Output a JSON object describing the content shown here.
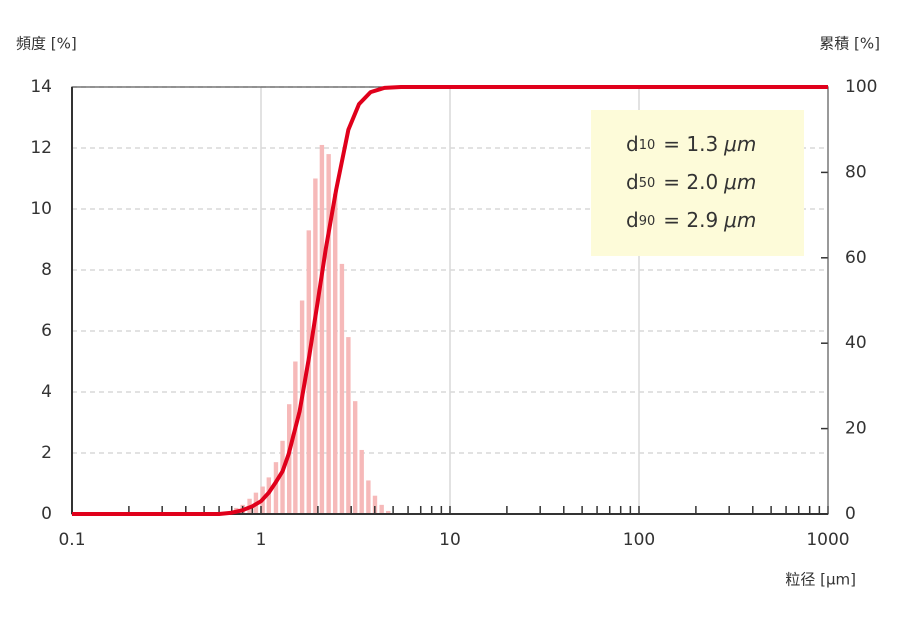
{
  "chart_data": {
    "type": "bar",
    "y_axis_label": "頻度 [%]",
    "y2_axis_label": "累積 [%]",
    "x_axis_label": "粒径 [μm]",
    "xscale": "log",
    "xlim": [
      0.1,
      1000
    ],
    "xticks": [
      0.1,
      1,
      10,
      100,
      1000
    ],
    "xminorticks": [
      0.2,
      0.3,
      0.4,
      0.5,
      0.6,
      0.7,
      0.8,
      0.9,
      2,
      3,
      4,
      5,
      6,
      7,
      8,
      9,
      20,
      30,
      40,
      50,
      60,
      70,
      80,
      90,
      200,
      300,
      400,
      500,
      600,
      700,
      800,
      900
    ],
    "ylim": [
      0,
      14
    ],
    "yticks": [
      0,
      2,
      4,
      6,
      8,
      10,
      12,
      14
    ],
    "y2lim": [
      0,
      100
    ],
    "y2ticks": [
      0,
      20,
      40,
      60,
      80,
      100
    ],
    "grid": true,
    "series": [
      {
        "type": "bar",
        "color": "#f6b9b9",
        "x": [
          0.74,
          0.8,
          0.87,
          0.94,
          1.02,
          1.1,
          1.2,
          1.3,
          1.41,
          1.52,
          1.65,
          1.79,
          1.94,
          2.1,
          2.28,
          2.47,
          2.68,
          2.9,
          3.15,
          3.41,
          3.7,
          4.01,
          4.35,
          4.71
        ],
        "values": [
          0.2,
          0.3,
          0.5,
          0.7,
          0.9,
          1.2,
          1.7,
          2.4,
          3.6,
          5.0,
          7.0,
          9.3,
          11.0,
          12.1,
          11.8,
          10.5,
          8.2,
          5.8,
          3.7,
          2.1,
          1.1,
          0.6,
          0.3,
          0.1
        ]
      },
      {
        "type": "line",
        "axis": "y2",
        "color": "#e0001b",
        "x": [
          0.1,
          0.6,
          0.7,
          0.8,
          0.9,
          1.0,
          1.1,
          1.2,
          1.3,
          1.4,
          1.6,
          1.8,
          2.0,
          2.2,
          2.5,
          2.9,
          3.3,
          3.8,
          4.5,
          5.5,
          1000
        ],
        "values": [
          0,
          0,
          0.3,
          0.9,
          1.8,
          3,
          5,
          7.5,
          10,
          14,
          24,
          37,
          50,
          62,
          76,
          90,
          96,
          98.8,
          99.8,
          100,
          100
        ]
      }
    ],
    "annotations": [
      {
        "symbol": "d",
        "subscript": "10",
        "text": "= 1.3",
        "unit": "μm"
      },
      {
        "symbol": "d",
        "subscript": "50",
        "text": "= 2.0",
        "unit": "μm"
      },
      {
        "symbol": "d",
        "subscript": "90",
        "text": "= 2.9",
        "unit": "μm"
      }
    ]
  }
}
